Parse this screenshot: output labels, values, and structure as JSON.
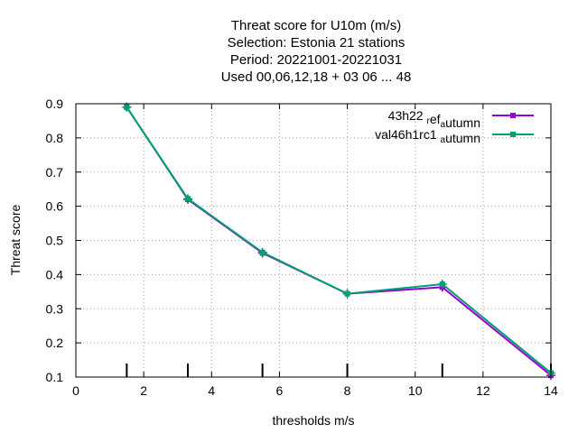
{
  "chart_data": {
    "type": "line",
    "title_lines": [
      "Threat score  for U10m (m/s)",
      "Selection: Estonia     21 stations",
      "Period: 20221001-20221031",
      "Used  00,06,12,18  + 03 06 ... 48"
    ],
    "xlabel": "thresholds m/s",
    "ylabel": "Threat score",
    "xlim": [
      0,
      14
    ],
    "ylim": [
      0.1,
      0.9
    ],
    "xticks": [
      0,
      2,
      4,
      6,
      8,
      10,
      12,
      14
    ],
    "yticks": [
      0.1,
      0.2,
      0.3,
      0.4,
      0.5,
      0.6,
      0.7,
      0.8,
      0.9
    ],
    "grid": true,
    "legend_position": "top-right",
    "threshold_markers": [
      1.5,
      3.3,
      5.5,
      8.0,
      10.8,
      14.0
    ],
    "series": [
      {
        "name_main": "43h22",
        "name_sub1": "r",
        "name_mid": "ef",
        "name_sub2": "a",
        "name_tail": "utumn",
        "color": "#9400d3",
        "x": [
          1.5,
          3.3,
          5.5,
          8.0,
          10.8,
          14.0
        ],
        "y": [
          0.89,
          0.62,
          0.463,
          0.344,
          0.363,
          0.105
        ]
      },
      {
        "name_main": "val46h1rc1",
        "name_sub1": "",
        "name_mid": "",
        "name_sub2": "a",
        "name_tail": "utumn",
        "color": "#009e73",
        "x": [
          1.5,
          3.3,
          5.5,
          8.0,
          10.8,
          14.0
        ],
        "y": [
          0.89,
          0.622,
          0.465,
          0.344,
          0.372,
          0.112
        ]
      }
    ]
  }
}
